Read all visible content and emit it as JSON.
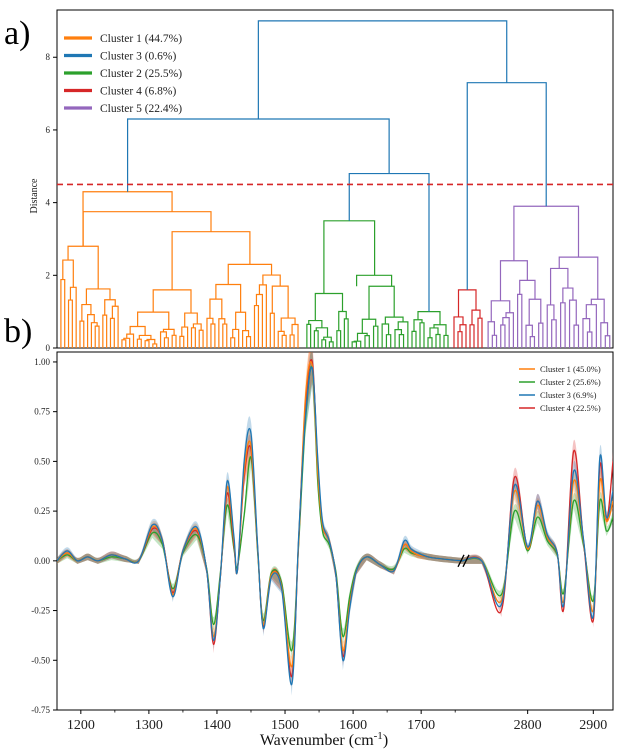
{
  "chart_data": [
    {
      "panel_label": "a)",
      "type": "dendrogram",
      "ylabel": "Distance",
      "ylim": [
        0,
        9.3
      ],
      "yticks": [
        0,
        2,
        4,
        6,
        8
      ],
      "threshold": 4.5,
      "threshold_color": "#d62728",
      "legend_position": "top-left",
      "legend": [
        {
          "label": "Cluster 1 (44.7%)",
          "color": "#ff7f0e"
        },
        {
          "label": "Cluster 3 (0.6%)",
          "color": "#1f77b4"
        },
        {
          "label": "Cluster 2 (25.5%)",
          "color": "#2ca02c"
        },
        {
          "label": "Cluster 4 (6.8%)",
          "color": "#d62728"
        },
        {
          "label": "Cluster 5 (22.4%)",
          "color": "#9467bd"
        }
      ],
      "merge_heights": {
        "root": 9.0,
        "left_branch": 6.3,
        "right_branch": 7.3,
        "cluster1": 4.3,
        "cluster2": 4.8,
        "cluster5": 3.9
      },
      "above_threshold_color": "#1f77b4"
    },
    {
      "panel_label": "b)",
      "type": "line",
      "xlabel": "Wavenumber (cm",
      "xlabel_sup": "-1",
      "xlabel_close": ")",
      "x_segments": [
        [
          1165,
          1760
        ],
        [
          2700,
          2930
        ]
      ],
      "xticks": [
        "1200",
        "1300",
        "1400",
        "1500",
        "1600",
        "1700",
        "2800",
        "2900"
      ],
      "ylim": [
        -0.75,
        1.05
      ],
      "yticks": [
        "-0.75",
        "-0.50",
        "-0.25",
        "0.00",
        "0.25",
        "0.50",
        "0.75",
        "1.00"
      ],
      "legend_position": "top-right",
      "series": [
        {
          "name": "Cluster 1 (45.0%)",
          "color": "#ff7f0e"
        },
        {
          "name": "Cluster 2 (25.6%)",
          "color": "#2ca02c"
        },
        {
          "name": "Cluster 3 (6.9%)",
          "color": "#1f77b4"
        },
        {
          "name": "Cluster 4 (22.5%)",
          "color": "#d62728"
        }
      ],
      "x": [
        1165,
        1180,
        1195,
        1210,
        1225,
        1245,
        1265,
        1285,
        1305,
        1320,
        1335,
        1350,
        1370,
        1385,
        1395,
        1405,
        1415,
        1425,
        1430,
        1440,
        1450,
        1460,
        1468,
        1480,
        1495,
        1510,
        1520,
        1530,
        1540,
        1548,
        1555,
        1565,
        1575,
        1585,
        1595,
        1605,
        1620,
        1640,
        1660,
        1675,
        1685,
        1695,
        1710,
        1730,
        1760,
        2700,
        2730,
        2760,
        2780,
        2800,
        2815,
        2830,
        2845,
        2855,
        2870,
        2885,
        2900,
        2910,
        2920,
        2930
      ],
      "values": [
        [
          0.0,
          0.04,
          0.0,
          0.02,
          0.0,
          0.03,
          0.01,
          0.0,
          0.17,
          0.1,
          -0.17,
          0.05,
          0.16,
          -0.05,
          -0.38,
          -0.08,
          0.37,
          0.1,
          -0.05,
          0.45,
          0.58,
          0.05,
          -0.32,
          -0.07,
          -0.13,
          -0.53,
          0.1,
          0.82,
          0.98,
          0.45,
          0.18,
          0.1,
          -0.08,
          -0.45,
          -0.22,
          -0.05,
          0.02,
          -0.02,
          -0.05,
          0.08,
          0.05,
          0.03,
          0.02,
          0.01,
          0.0,
          0.0,
          0.0,
          -0.2,
          0.35,
          0.06,
          0.28,
          0.12,
          0.04,
          -0.2,
          0.4,
          0.1,
          -0.25,
          0.4,
          0.2,
          0.3
        ],
        [
          0.0,
          0.03,
          0.0,
          0.02,
          0.0,
          0.02,
          0.01,
          0.0,
          0.14,
          0.08,
          -0.14,
          0.04,
          0.13,
          -0.04,
          -0.32,
          -0.06,
          0.28,
          0.06,
          -0.03,
          0.23,
          0.52,
          0.03,
          -0.3,
          -0.06,
          -0.11,
          -0.45,
          0.08,
          0.7,
          0.97,
          0.4,
          0.15,
          0.08,
          -0.06,
          -0.38,
          -0.18,
          -0.04,
          0.02,
          -0.02,
          -0.04,
          0.06,
          0.04,
          0.03,
          0.02,
          0.01,
          0.0,
          0.0,
          0.0,
          -0.17,
          0.25,
          0.05,
          0.22,
          0.1,
          0.03,
          -0.16,
          0.3,
          0.08,
          -0.2,
          0.3,
          0.15,
          0.22
        ],
        [
          0.0,
          0.05,
          0.0,
          0.02,
          0.0,
          0.03,
          0.01,
          0.0,
          0.18,
          0.1,
          -0.18,
          0.05,
          0.17,
          -0.05,
          -0.4,
          -0.08,
          0.4,
          0.12,
          -0.05,
          0.5,
          0.64,
          0.06,
          -0.34,
          -0.08,
          -0.14,
          -0.62,
          0.12,
          0.72,
          0.97,
          0.52,
          0.2,
          0.1,
          -0.08,
          -0.5,
          -0.24,
          -0.05,
          0.02,
          -0.02,
          -0.05,
          0.1,
          0.06,
          0.04,
          0.02,
          0.01,
          0.0,
          0.0,
          0.0,
          -0.22,
          0.38,
          0.07,
          0.3,
          0.13,
          0.04,
          -0.22,
          0.45,
          0.11,
          -0.28,
          0.52,
          0.22,
          0.35
        ],
        [
          0.0,
          0.04,
          0.0,
          0.02,
          0.0,
          0.03,
          0.01,
          0.0,
          0.16,
          0.1,
          -0.16,
          0.05,
          0.15,
          -0.05,
          -0.42,
          -0.08,
          0.34,
          0.08,
          -0.05,
          0.42,
          0.56,
          0.05,
          -0.33,
          -0.07,
          -0.13,
          -0.58,
          0.1,
          0.78,
          1.0,
          0.48,
          0.18,
          0.1,
          -0.08,
          -0.48,
          -0.22,
          -0.05,
          0.02,
          -0.02,
          -0.05,
          0.08,
          0.05,
          0.03,
          0.02,
          0.01,
          0.0,
          0.0,
          0.0,
          -0.25,
          0.42,
          0.06,
          0.3,
          0.12,
          0.04,
          -0.24,
          0.55,
          0.1,
          -0.3,
          0.48,
          0.2,
          0.5
        ]
      ]
    }
  ]
}
